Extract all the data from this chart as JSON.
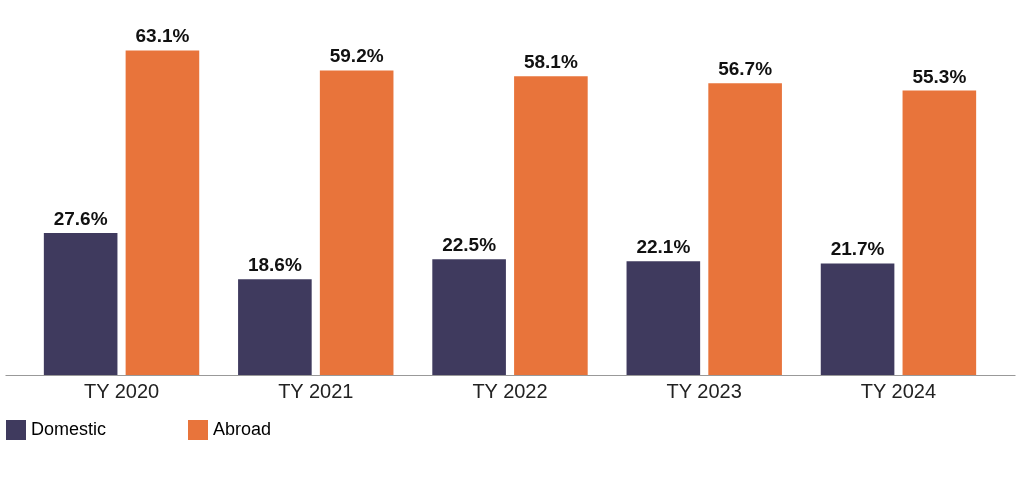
{
  "chart_data": {
    "type": "bar",
    "categories": [
      "TY 2020",
      "TY 2021",
      "TY 2022",
      "TY 2023",
      "TY 2024"
    ],
    "series": [
      {
        "name": "Domestic",
        "color": "#3f3a5e",
        "values": [
          27.6,
          18.6,
          22.5,
          22.1,
          21.7
        ],
        "value_labels": [
          "27.6%",
          "18.6%",
          "22.5%",
          "22.1%",
          "21.7%"
        ]
      },
      {
        "name": "Abroad",
        "color": "#e8743b",
        "values": [
          63.1,
          59.2,
          58.1,
          56.7,
          55.3
        ],
        "value_labels": [
          "63.1%",
          "59.2%",
          "58.1%",
          "56.7%",
          "55.3%"
        ]
      }
    ],
    "legend": "bottom"
  }
}
